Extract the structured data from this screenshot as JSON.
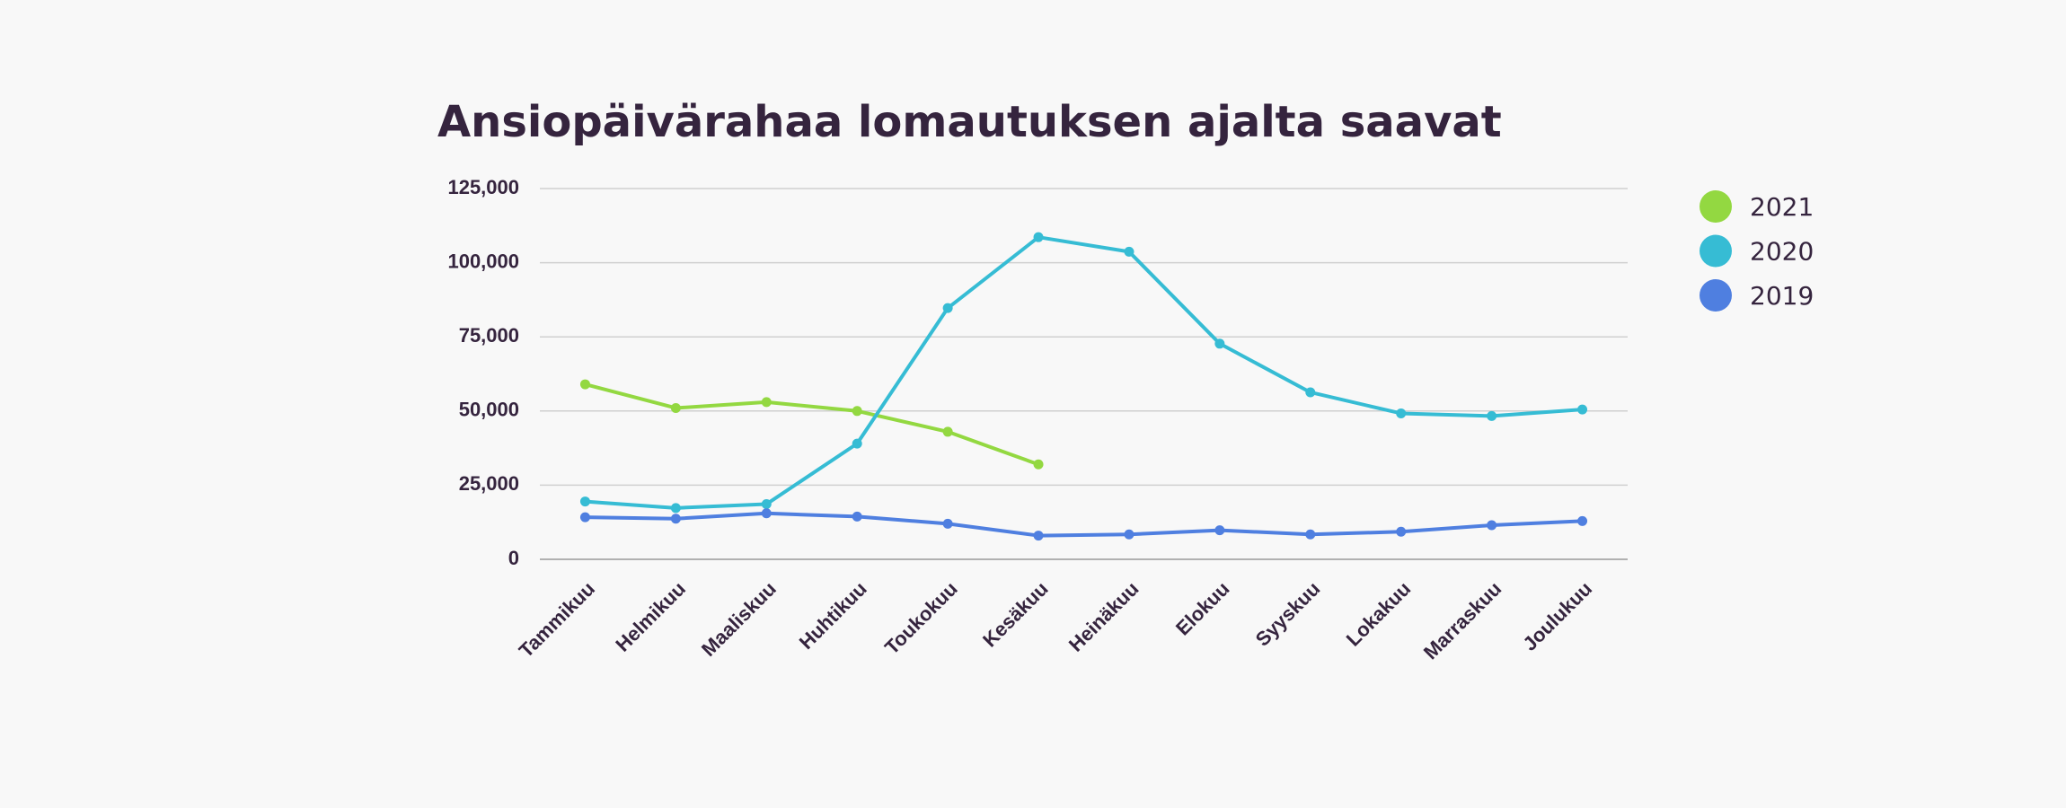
{
  "chart_data": {
    "type": "line",
    "title": "Ansiopäivärahaa lomautuksen ajalta saavat",
    "categories": [
      "Tammikuu",
      "Helmikuu",
      "Maaliskuu",
      "Huhtikuu",
      "Toukokuu",
      "Kesäkuu",
      "Heinäkuu",
      "Elokuu",
      "Syyskuu",
      "Lokakuu",
      "Marraskuu",
      "Joulukuu"
    ],
    "series": [
      {
        "name": "2021",
        "color": "#93d841",
        "values": [
          59000,
          51000,
          53000,
          50000,
          43000,
          32000,
          null,
          null,
          null,
          null,
          null,
          null
        ]
      },
      {
        "name": "2020",
        "color": "#36bcd4",
        "values": [
          19500,
          17300,
          18600,
          39000,
          84700,
          108600,
          103700,
          72700,
          56300,
          49200,
          48300,
          50500
        ]
      },
      {
        "name": "2019",
        "color": "#4f7fe0",
        "values": [
          14200,
          13700,
          15500,
          14400,
          12000,
          8000,
          8400,
          9800,
          8400,
          9300,
          11500,
          12900
        ]
      }
    ],
    "ylim": [
      0,
      125000
    ],
    "yticks": [
      0,
      {
        "value": 25000,
        "label": "25,000"
      },
      {
        "value": 50000,
        "label": "50,000"
      },
      {
        "value": 75000,
        "label": "75,000"
      },
      {
        "value": 100000,
        "label": "100,000"
      },
      {
        "value": 125000,
        "label": "125,000"
      }
    ],
    "grid": true,
    "legend": "right"
  }
}
